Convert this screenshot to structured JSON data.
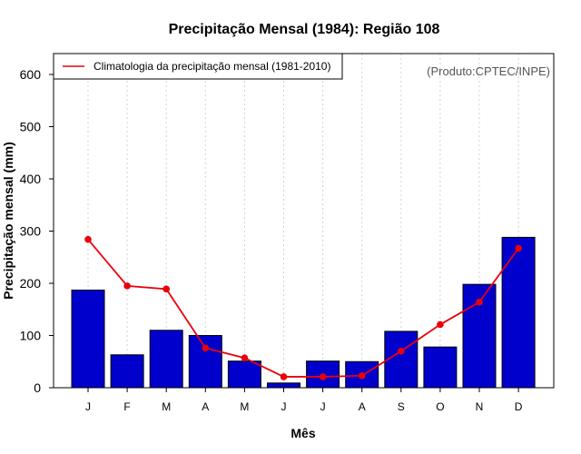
{
  "colors": {
    "bar": "#0000cc",
    "line": "#e8000b",
    "grid": "#d3d3d3"
  },
  "chart_data": {
    "type": "bar",
    "title": "Precipitação Mensal (1984): Região 108",
    "xlabel": "Mês",
    "ylabel": "Precipitação mensal (mm)",
    "ylim": [
      0,
      640
    ],
    "yticks": [
      0,
      100,
      200,
      300,
      400,
      500,
      600
    ],
    "categories": [
      "J",
      "F",
      "M",
      "A",
      "M",
      "J",
      "J",
      "A",
      "S",
      "O",
      "N",
      "D"
    ],
    "series": [
      {
        "name": "Precipitação mensal (1984)",
        "type": "bar",
        "values": [
          187,
          63,
          110,
          100,
          51,
          9,
          51,
          50,
          108,
          78,
          198,
          288
        ]
      },
      {
        "name": "Climatologia da precipitação mensal (1981-2010)",
        "type": "line",
        "values": [
          284,
          195,
          189,
          76,
          57,
          21,
          21,
          23,
          70,
          121,
          164,
          267
        ]
      }
    ],
    "legend": {
      "label": "Climatologia da precipitação mensal (1981-2010)",
      "position": "top-left"
    },
    "annotation": "(Produto:CPTEC/INPE)",
    "grid": "vertical-dotted"
  }
}
